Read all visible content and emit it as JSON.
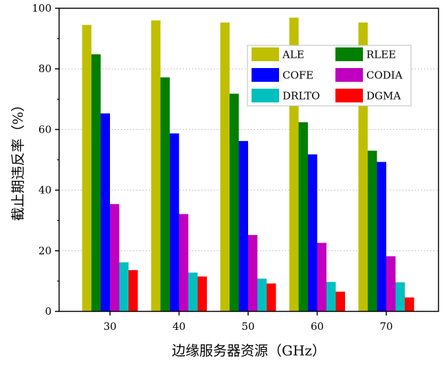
{
  "chart_data": {
    "type": "bar",
    "xlabel": "边缘服务器资源（GHz）",
    "ylabel": "截止期违反率（%）",
    "categories": [
      "30",
      "40",
      "50",
      "60",
      "70"
    ],
    "ylim": [
      0,
      100
    ],
    "yticks": [
      "0",
      "20",
      "40",
      "60",
      "80",
      "100"
    ],
    "grid": "horizontal dotted",
    "legend": "top-right",
    "series": [
      {
        "name": "ALE",
        "color": "#bfbf00",
        "values": [
          94.5,
          96.0,
          95.3,
          96.9,
          95.3
        ]
      },
      {
        "name": "RLEE",
        "color": "#007f00",
        "values": [
          84.8,
          77.2,
          71.8,
          62.4,
          53.0
        ]
      },
      {
        "name": "COFE",
        "color": "#0000ff",
        "values": [
          65.3,
          58.7,
          56.2,
          51.8,
          49.3
        ]
      },
      {
        "name": "CODIA",
        "color": "#bf00bf",
        "values": [
          35.4,
          32.1,
          25.2,
          22.6,
          18.2
        ]
      },
      {
        "name": "DRLTO",
        "color": "#00bfbf",
        "values": [
          16.2,
          12.8,
          10.8,
          9.7,
          9.6
        ]
      },
      {
        "name": "DGMA",
        "color": "#ff0000",
        "values": [
          13.6,
          11.5,
          9.2,
          6.5,
          4.6
        ]
      }
    ]
  }
}
